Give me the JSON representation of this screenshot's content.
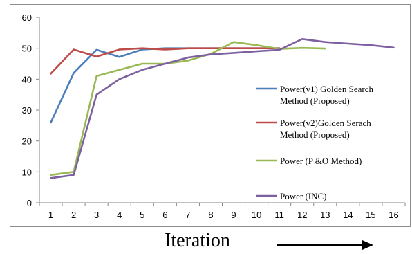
{
  "chart_data": {
    "type": "line",
    "title": "",
    "xlabel": "Iteration",
    "ylabel": "",
    "x": [
      1,
      2,
      3,
      4,
      5,
      6,
      7,
      8,
      9,
      10,
      11,
      12,
      13,
      14,
      15,
      16
    ],
    "x_tick_labels": [
      "1",
      "2",
      "3",
      "4",
      "5",
      "6",
      "7",
      "8",
      "9",
      "10",
      "11",
      "12",
      "13",
      "14",
      "15",
      "16"
    ],
    "ylim": [
      0,
      60
    ],
    "y_ticks": [
      0,
      10,
      20,
      30,
      40,
      50,
      60
    ],
    "grid": false,
    "legend_placement": "right",
    "series": [
      {
        "name_lines": [
          "Power(v1) Golden Search",
          "Method (Proposed)"
        ],
        "color": "#4a7ebb",
        "x": [
          1,
          2,
          3,
          4,
          5,
          6,
          7,
          8,
          9,
          10,
          11
        ],
        "values": [
          26,
          42,
          49.5,
          47.2,
          49.6,
          50,
          50,
          50,
          50,
          50,
          50
        ]
      },
      {
        "name_lines": [
          "Power(v2)Golden Serach",
          "Method (Proposed)"
        ],
        "color": "#be4b48",
        "x": [
          1,
          2,
          3,
          4,
          5,
          6,
          7,
          8,
          9,
          10,
          11
        ],
        "values": [
          41.8,
          49.6,
          47.3,
          49.6,
          50,
          49.6,
          50,
          50,
          50,
          50,
          50
        ]
      },
      {
        "name_lines": [
          "Power (P &O Method)"
        ],
        "color": "#98b954",
        "x": [
          1,
          2,
          3,
          4,
          5,
          6,
          7,
          8,
          9,
          10,
          11,
          12,
          13
        ],
        "values": [
          9,
          10,
          41,
          43,
          45,
          45,
          46,
          48.2,
          52,
          51,
          49.8,
          50.1,
          49.9
        ]
      },
      {
        "name_lines": [
          "Power (INC)"
        ],
        "color": "#7d60a0",
        "x": [
          1,
          2,
          3,
          4,
          5,
          6,
          7,
          8,
          9,
          10,
          11,
          12,
          13,
          14,
          15,
          16
        ],
        "values": [
          8,
          9,
          35,
          40,
          43,
          45,
          47,
          48,
          48.5,
          49,
          49.5,
          53,
          52,
          51.5,
          51,
          50.2
        ]
      }
    ]
  }
}
